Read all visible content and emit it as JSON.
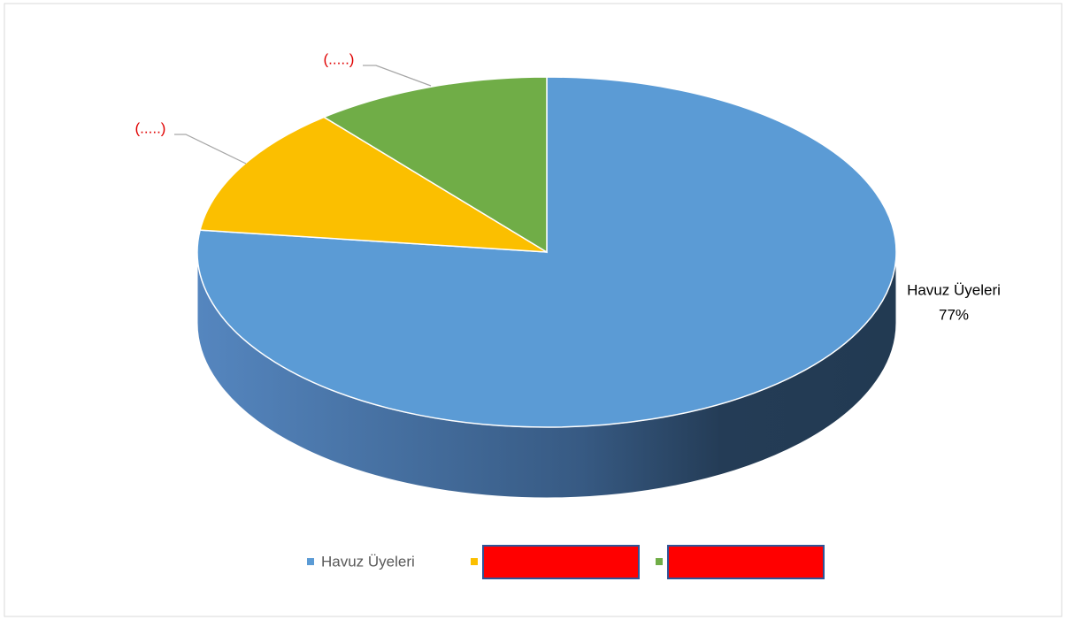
{
  "chart_data": {
    "type": "pie",
    "categories": [
      "Havuz Üyeleri",
      null,
      null
    ],
    "values": [
      77,
      12,
      11
    ],
    "value_labels": [
      "77%",
      "(.....)",
      "(.....)"
    ],
    "colors": [
      "#5b9bd5",
      "#fbbf00",
      "#70ad47"
    ],
    "legend": "bottom"
  }
}
